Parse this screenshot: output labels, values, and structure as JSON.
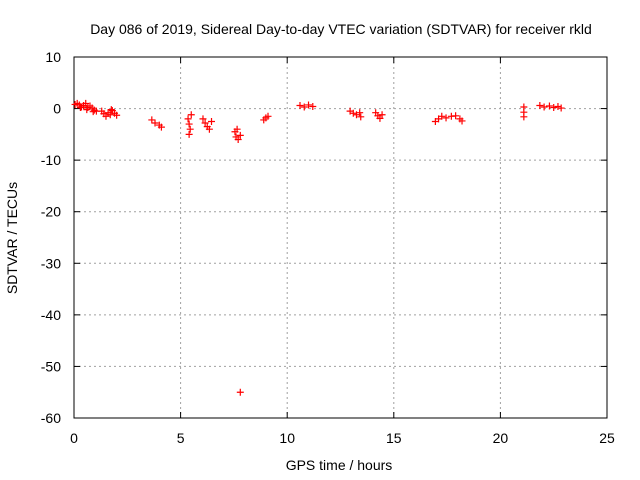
{
  "chart_data": {
    "type": "scatter",
    "title": "Day 086 of 2019, Sidereal Day-to-day VTEC variation (SDTVAR) for receiver rkld",
    "xlabel": "GPS time / hours",
    "ylabel": "SDTVAR / TECUs",
    "xlim": [
      0,
      25
    ],
    "ylim": [
      -60,
      10
    ],
    "xticks": [
      0,
      5,
      10,
      15,
      20,
      25
    ],
    "yticks": [
      10,
      0,
      -10,
      -20,
      -30,
      -40,
      -50,
      -60
    ],
    "grid": true,
    "marker": "+",
    "color": "#ff0000",
    "series": [
      {
        "name": "SDTVAR",
        "points": [
          [
            0.05,
            0.8
          ],
          [
            0.15,
            1.0
          ],
          [
            0.25,
            0.7
          ],
          [
            0.35,
            0.3
          ],
          [
            0.45,
            0.6
          ],
          [
            0.55,
            1.0
          ],
          [
            0.65,
            0.2
          ],
          [
            0.75,
            0.5
          ],
          [
            0.85,
            0.1
          ],
          [
            0.95,
            -0.3
          ],
          [
            1.05,
            -0.5
          ],
          [
            0.3,
            0.2
          ],
          [
            0.6,
            -0.2
          ],
          [
            0.9,
            -0.6
          ],
          [
            1.3,
            -0.5
          ],
          [
            1.4,
            -1.0
          ],
          [
            1.5,
            -1.5
          ],
          [
            1.6,
            -0.8
          ],
          [
            1.7,
            -1.2
          ],
          [
            1.8,
            -0.4
          ],
          [
            1.9,
            -0.9
          ],
          [
            2.0,
            -1.3
          ],
          [
            1.75,
            -0.2
          ],
          [
            3.65,
            -2.2
          ],
          [
            3.8,
            -2.8
          ],
          [
            4.0,
            -3.2
          ],
          [
            4.1,
            -3.6
          ],
          [
            5.35,
            -2.0
          ],
          [
            5.4,
            -3.0
          ],
          [
            5.45,
            -4.0
          ],
          [
            5.4,
            -5.0
          ],
          [
            5.5,
            -1.2
          ],
          [
            6.05,
            -2.0
          ],
          [
            6.15,
            -2.8
          ],
          [
            6.25,
            -3.5
          ],
          [
            6.35,
            -4.0
          ],
          [
            6.45,
            -2.5
          ],
          [
            7.55,
            -4.5
          ],
          [
            7.6,
            -5.5
          ],
          [
            7.7,
            -6.0
          ],
          [
            7.8,
            -5.2
          ],
          [
            7.65,
            -4.0
          ],
          [
            7.8,
            -55.0
          ],
          [
            8.9,
            -2.2
          ],
          [
            9.0,
            -1.8
          ],
          [
            9.1,
            -1.5
          ],
          [
            10.6,
            0.6
          ],
          [
            10.8,
            0.3
          ],
          [
            11.0,
            0.7
          ],
          [
            11.2,
            0.4
          ],
          [
            12.95,
            -0.5
          ],
          [
            13.1,
            -0.9
          ],
          [
            13.25,
            -1.2
          ],
          [
            13.45,
            -1.6
          ],
          [
            13.4,
            -0.8
          ],
          [
            14.15,
            -0.8
          ],
          [
            14.25,
            -1.4
          ],
          [
            14.35,
            -1.9
          ],
          [
            14.45,
            -1.2
          ],
          [
            16.95,
            -2.5
          ],
          [
            17.1,
            -2.0
          ],
          [
            17.25,
            -1.5
          ],
          [
            17.45,
            -1.8
          ],
          [
            17.7,
            -1.5
          ],
          [
            17.9,
            -1.4
          ],
          [
            18.1,
            -2.0
          ],
          [
            18.2,
            -2.4
          ],
          [
            21.1,
            0.3
          ],
          [
            21.1,
            -0.7
          ],
          [
            21.1,
            -1.6
          ],
          [
            21.85,
            0.6
          ],
          [
            22.05,
            0.3
          ],
          [
            22.3,
            0.5
          ],
          [
            22.5,
            0.2
          ],
          [
            22.7,
            0.4
          ],
          [
            22.85,
            0.1
          ]
        ]
      }
    ]
  }
}
